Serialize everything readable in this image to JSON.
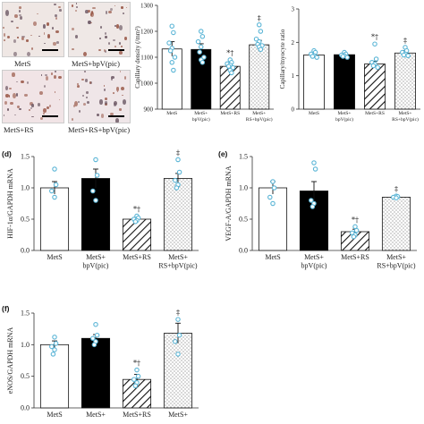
{
  "micrographs": [
    {
      "label": "MetS",
      "tint": "#efe7e4"
    },
    {
      "label": "MetS+bpV(pic)",
      "tint": "#efe8e6"
    },
    {
      "label": "MetS+RS",
      "tint": "#f1e4e6"
    },
    {
      "label": "MetS+RS+bpV(pic)",
      "tint": "#efe6e8"
    }
  ],
  "colors": {
    "bar_fill_1": "#ffffff",
    "bar_fill_2": "#000000",
    "dot": "#5bb5d6",
    "axis": "#333333"
  },
  "chart_data": [
    {
      "type": "bar",
      "ylabel": "Capillary density (/mm²)",
      "ylim": [
        900,
        1300
      ],
      "yticks": [
        900,
        1000,
        1100,
        1200,
        1300
      ],
      "categories": [
        "MetS",
        "MetS+\nbpV(pic)",
        "MetS+RS",
        "MetS+\nRS+bpV(pic)"
      ],
      "values": [
        1132,
        1130,
        1065,
        1148
      ],
      "errors": [
        28,
        22,
        15,
        17
      ],
      "annotations": [
        "",
        "",
        "*†",
        "‡"
      ],
      "points": [
        [
          1220,
          1195,
          1155,
          1135,
          1125,
          1100,
          1080,
          1050
        ],
        [
          1200,
          1180,
          1160,
          1140,
          1120,
          1100,
          1090,
          1080
        ],
        [
          1090,
          1080,
          1075,
          1070,
          1065,
          1060,
          1050,
          1040
        ],
        [
          1225,
          1200,
          1170,
          1160,
          1150,
          1145,
          1140,
          1130
        ]
      ]
    },
    {
      "type": "bar",
      "ylabel": "Capillary/myocyte ratio",
      "ylim": [
        0,
        3
      ],
      "yticks": [
        0,
        1,
        2,
        3
      ],
      "categories": [
        "MetS",
        "MetS+\nbpV(pic)",
        "MetS+RS",
        "MetS+\nRS+bpV(pic)"
      ],
      "values": [
        1.62,
        1.63,
        1.35,
        1.68
      ],
      "errors": [
        0.05,
        0.05,
        0.08,
        0.07
      ],
      "annotations": [
        "",
        "",
        "*†",
        "‡"
      ],
      "points": [
        [
          1.75,
          1.7,
          1.65,
          1.6,
          1.58,
          1.55
        ],
        [
          1.7,
          1.65,
          1.62,
          1.6,
          1.58,
          1.55
        ],
        [
          1.95,
          1.5,
          1.4,
          1.35,
          1.3,
          1.25
        ],
        [
          1.85,
          1.75,
          1.7,
          1.65,
          1.62,
          1.6
        ]
      ]
    },
    {
      "type": "bar",
      "panel": "(d)",
      "ylabel": "HIF-1α/GAPDH mRNA",
      "ylim": [
        0,
        1.5
      ],
      "yticks": [
        0,
        0.5,
        1.0,
        1.5
      ],
      "categories": [
        "MetS",
        "MetS+\nbpV(pic)",
        "MetS+RS",
        "MetS+\nRS+bpV(pic)"
      ],
      "values": [
        1.0,
        1.15,
        0.5,
        1.15
      ],
      "errors": [
        0.1,
        0.15,
        0.03,
        0.08
      ],
      "annotations": [
        "",
        "",
        "*†",
        "‡"
      ],
      "points": [
        [
          1.3,
          1.05,
          0.95,
          0.85
        ],
        [
          1.45,
          1.2,
          0.95,
          0.8
        ],
        [
          0.55,
          0.52,
          0.5,
          0.48,
          0.46
        ],
        [
          1.45,
          1.25,
          1.12,
          1.05,
          1.0
        ]
      ]
    },
    {
      "type": "bar",
      "panel": "(e)",
      "ylabel": "VEGF-A/GAPDH mRNA",
      "ylim": [
        0,
        1.5
      ],
      "yticks": [
        0,
        0.5,
        1.0,
        1.5
      ],
      "categories": [
        "MetS",
        "MetS+\nbpV(pic)",
        "MetS+RS",
        "MetS+\nRS+bpV(pic)"
      ],
      "values": [
        1.0,
        0.95,
        0.3,
        0.85
      ],
      "errors": [
        0.1,
        0.15,
        0.04,
        0.02
      ],
      "annotations": [
        "",
        "",
        "*†",
        "‡"
      ],
      "points": [
        [
          1.1,
          1.0,
          0.85,
          0.75
        ],
        [
          1.4,
          1.3,
          0.8,
          0.75,
          0.7
        ],
        [
          0.38,
          0.32,
          0.28,
          0.25,
          0.22
        ],
        [
          0.87,
          0.86,
          0.85,
          0.84
        ]
      ]
    },
    {
      "type": "bar",
      "panel": "(f)",
      "ylabel": "eNOS/GAPDH mRNA",
      "ylim": [
        0,
        1.5
      ],
      "yticks": [
        0,
        0.5,
        1.0,
        1.5
      ],
      "categories": [
        "MetS",
        "MetS+",
        "MetS+RS",
        "MetS+"
      ],
      "values": [
        1.0,
        1.1,
        0.45,
        1.18
      ],
      "errors": [
        0.06,
        0.06,
        0.08,
        0.16
      ],
      "annotations": [
        "",
        "",
        "*†",
        "‡"
      ],
      "points": [
        [
          1.12,
          1.02,
          0.97,
          0.92,
          0.85
        ],
        [
          1.32,
          1.15,
          1.1,
          1.05,
          1.0
        ],
        [
          0.6,
          0.5,
          0.45,
          0.4,
          0.35
        ],
        [
          1.4,
          1.15,
          1.05,
          0.85
        ]
      ]
    }
  ]
}
